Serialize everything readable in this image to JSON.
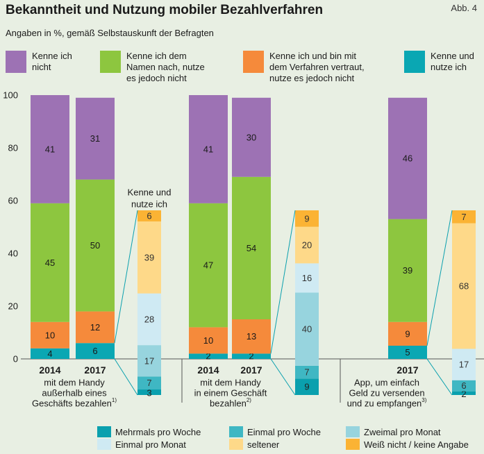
{
  "header": {
    "title": "Bekanntheit und Nutzung mobiler Bezahlverfahren",
    "subtitle": "Angaben in %, gemäß Selbstauskunft der Befragten",
    "figure_ref": "Abb. 4"
  },
  "colors": {
    "kenne_nicht": "#9d72b4",
    "kenne_namen": "#8dc63f",
    "kenne_vertraut": "#f58a3b",
    "kenne_nutze": "#0aa7b3",
    "mehrmals_woche": "#0aa0ae",
    "einmal_woche": "#3fb7c3",
    "zweimal_monat": "#97d4de",
    "einmal_monat": "#cfeaf3",
    "seltener": "#fed989",
    "weiss_nicht": "#fbb334"
  },
  "legend_top": [
    {
      "key": "kenne_nicht",
      "label": "Kenne ich\nnicht"
    },
    {
      "key": "kenne_namen",
      "label": "Kenne ich dem\nNamen nach, nutze\nes jedoch nicht"
    },
    {
      "key": "kenne_vertraut",
      "label": "Kenne ich und bin mit\ndem Verfahren vertraut,\nnutze es jedoch nicht"
    },
    {
      "key": "kenne_nutze",
      "label": "Kenne und\nnutze ich"
    }
  ],
  "legend_bottom": [
    {
      "key": "mehrmals_woche",
      "label": "Mehrmals pro Woche"
    },
    {
      "key": "einmal_woche",
      "label": "Einmal pro Woche"
    },
    {
      "key": "zweimal_monat",
      "label": "Zweimal pro Monat"
    },
    {
      "key": "einmal_monat",
      "label": "Einmal pro Monat"
    },
    {
      "key": "seltener",
      "label": "seltener"
    },
    {
      "key": "weiss_nicht",
      "label": "Weiß nicht / keine Angabe"
    }
  ],
  "chart_data": {
    "type": "bar",
    "stacked": true,
    "ylim": [
      0,
      100
    ],
    "yticks": [
      0,
      20,
      40,
      60,
      80,
      100
    ],
    "grid": false,
    "groups": [
      {
        "label": "mit dem Handy\naußerhalb eines\nGeschäfts bezahlen",
        "footnote": "1)",
        "bars": [
          {
            "year": "2014",
            "segments": [
              {
                "key": "kenne_nutze",
                "value": 4
              },
              {
                "key": "kenne_vertraut",
                "value": 10
              },
              {
                "key": "kenne_namen",
                "value": 45
              },
              {
                "key": "kenne_nicht",
                "value": 41
              }
            ]
          },
          {
            "year": "2017",
            "segments": [
              {
                "key": "kenne_nutze",
                "value": 6
              },
              {
                "key": "kenne_vertraut",
                "value": 12
              },
              {
                "key": "kenne_namen",
                "value": 50
              },
              {
                "key": "kenne_nicht",
                "value": 31
              }
            ]
          }
        ],
        "detail": {
          "label": "Kenne und\nnutze ich",
          "segments": [
            {
              "key": "mehrmals_woche",
              "value": 3
            },
            {
              "key": "einmal_woche",
              "value": 7
            },
            {
              "key": "zweimal_monat",
              "value": 17
            },
            {
              "key": "einmal_monat",
              "value": 28
            },
            {
              "key": "seltener",
              "value": 39
            },
            {
              "key": "weiss_nicht",
              "value": 6
            }
          ]
        }
      },
      {
        "label": "mit dem Handy\nin einem Geschäft\nbezahlen",
        "footnote": "2)",
        "bars": [
          {
            "year": "2014",
            "segments": [
              {
                "key": "kenne_nutze",
                "value": 2
              },
              {
                "key": "kenne_vertraut",
                "value": 10
              },
              {
                "key": "kenne_namen",
                "value": 47
              },
              {
                "key": "kenne_nicht",
                "value": 41
              }
            ]
          },
          {
            "year": "2017",
            "segments": [
              {
                "key": "kenne_nutze",
                "value": 2
              },
              {
                "key": "kenne_vertraut",
                "value": 13
              },
              {
                "key": "kenne_namen",
                "value": 54
              },
              {
                "key": "kenne_nicht",
                "value": 30
              }
            ]
          }
        ],
        "detail": {
          "segments": [
            {
              "key": "mehrmals_woche",
              "value": 9
            },
            {
              "key": "einmal_woche",
              "value": 7
            },
            {
              "key": "zweimal_monat",
              "value": 40
            },
            {
              "key": "einmal_monat",
              "value": 16
            },
            {
              "key": "seltener",
              "value": 20
            },
            {
              "key": "weiss_nicht",
              "value": 9
            }
          ]
        }
      },
      {
        "label": "App, um einfach\nGeld zu versenden\nund zu empfangen",
        "footnote": "3)",
        "bars": [
          {
            "year": "2017",
            "segments": [
              {
                "key": "kenne_nutze",
                "value": 5
              },
              {
                "key": "kenne_vertraut",
                "value": 9
              },
              {
                "key": "kenne_namen",
                "value": 39
              },
              {
                "key": "kenne_nicht",
                "value": 46
              }
            ]
          }
        ],
        "detail": {
          "segments": [
            {
              "key": "mehrmals_woche",
              "value": 2
            },
            {
              "key": "einmal_woche",
              "value": 6
            },
            {
              "key": "einmal_monat",
              "value": 17
            },
            {
              "key": "seltener",
              "value": 68
            },
            {
              "key": "weiss_nicht",
              "value": 7
            }
          ]
        }
      }
    ]
  }
}
